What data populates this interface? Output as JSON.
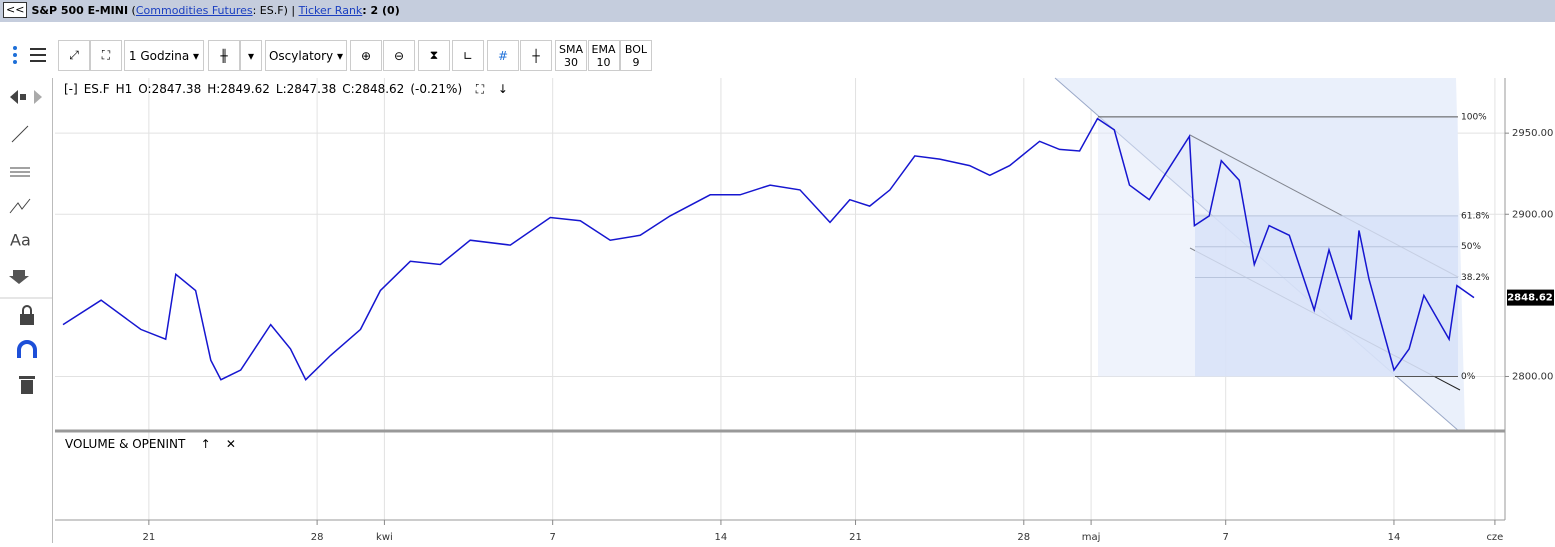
{
  "header": {
    "back": "<<",
    "parts": [
      {
        "text": "S&P 500 E-MINI",
        "style": "bold"
      },
      {
        "text": " (",
        "style": "plain"
      },
      {
        "text": "Commodities Futures",
        "style": "link"
      },
      {
        "text": ": ES.F) | ",
        "style": "plain"
      },
      {
        "text": "Ticker Rank",
        "style": "link"
      },
      {
        "text": ": 2 (0)",
        "style": "bold"
      }
    ]
  },
  "toolbar": {
    "interval": "1 Godzina",
    "oscillators": "Oscylatory",
    "indicators": [
      {
        "name": "SMA",
        "value": 30
      },
      {
        "name": "EMA",
        "value": 10
      },
      {
        "name": "BOL",
        "value": 9
      }
    ]
  },
  "sidebar": {
    "text_tool": "Aa"
  },
  "legend": {
    "symbol": "ES.F",
    "interval": "H1",
    "open": "O:2847.38",
    "high": "H:2849.62",
    "low": "L:2847.38",
    "close": "C:2848.62",
    "change": "(-0.21%)"
  },
  "volume_pane": {
    "title": "VOLUME & OPENINT"
  },
  "chart_data": {
    "type": "line",
    "x": [
      -2.55,
      -1.42,
      -0.24,
      0.5,
      0.8,
      1.39,
      1.84,
      2.14,
      2.73,
      3.62,
      4.21,
      4.66,
      5.4,
      6.29,
      6.88,
      7.77,
      8.66,
      9.55,
      10.74,
      11.93,
      12.82,
      13.71,
      14.6,
      15.49,
      16.68,
      17.57,
      18.46,
      19.35,
      20.24,
      20.83,
      21.42,
      22.02,
      22.76,
      23.5,
      24.39,
      24.99,
      25.58,
      26.47,
      27.06,
      27.66,
      28.19,
      28.69,
      29.14,
      29.73,
      30.18,
      30.92,
      31.07,
      31.51,
      31.87,
      32.4,
      32.85,
      33.29,
      33.89,
      34.63,
      35.07,
      35.73,
      35.96,
      36.26,
      37,
      37.45,
      37.89,
      38.64,
      38.87,
      39.38
    ],
    "series": [
      {
        "name": "ES.F",
        "color": "#1616d0",
        "values": [
          2832,
          2847,
          2829,
          2823,
          2863,
          2853,
          2810,
          2798,
          2804,
          2832,
          2817,
          2798,
          2813,
          2829,
          2853,
          2871,
          2869,
          2884,
          2881,
          2898,
          2896,
          2884,
          2887,
          2899,
          2912,
          2912,
          2918,
          2915,
          2895,
          2909,
          2905,
          2915,
          2936,
          2934,
          2930,
          2924,
          2930,
          2945,
          2940,
          2939,
          2959,
          2952,
          2918,
          2909,
          2924,
          2948,
          2893,
          2899,
          2933,
          2921,
          2869,
          2893,
          2887,
          2841,
          2878,
          2835,
          2890,
          2860,
          2804,
          2817,
          2850,
          2823,
          2856,
          2848.62
        ]
      }
    ],
    "xlim": [
      -2.7,
      40.3
    ],
    "xticks": [
      {
        "value": 0,
        "label": "21"
      },
      {
        "value": 5,
        "label": "28"
      },
      {
        "value": 7,
        "label": "kwi"
      },
      {
        "value": 12,
        "label": "7"
      },
      {
        "value": 17,
        "label": "14"
      },
      {
        "value": 21,
        "label": "21"
      },
      {
        "value": 26,
        "label": "28"
      },
      {
        "value": 28,
        "label": "maj"
      },
      {
        "value": 32,
        "label": "7"
      },
      {
        "value": 37,
        "label": "14"
      },
      {
        "value": 40,
        "label": "cze"
      }
    ],
    "ylim": [
      2767,
      2984
    ],
    "yticks": [
      {
        "value": 2800,
        "label": "2800.00"
      },
      {
        "value": 2900,
        "label": "2900.00"
      },
      {
        "value": 2950,
        "label": "2950.00"
      }
    ],
    "grid": true,
    "last_price": 2848.62,
    "fib": [
      {
        "value": 2960,
        "label": "100%"
      },
      {
        "value": 2899,
        "label": "61.8%"
      },
      {
        "value": 2880,
        "label": "50%"
      },
      {
        "value": 2861,
        "label": "38.2%"
      },
      {
        "value": 2800,
        "label": "0%"
      }
    ]
  }
}
